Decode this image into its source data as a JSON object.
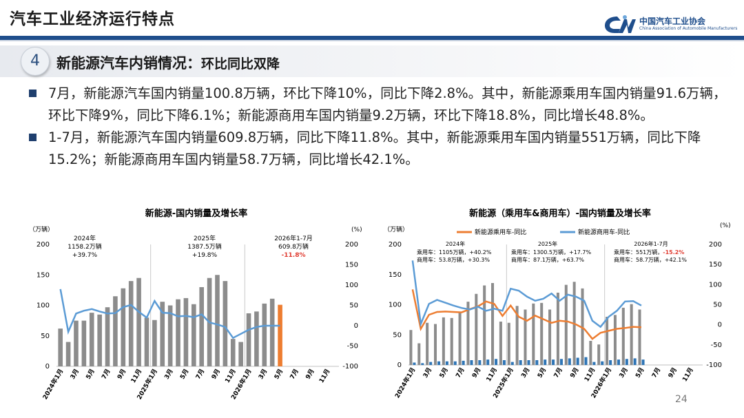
{
  "header": {
    "title": "汽车工业经济运行特点",
    "logo_cn": "中国汽车工业协会",
    "logo_en": "China Association of Automobile Manufacturers"
  },
  "section": {
    "number": "4",
    "title": "新能源汽车内销情况：",
    "title_tail": "环比同比双降"
  },
  "bullets": [
    "7月，新能源汽车国内销量100.8万辆，环比下降10%，同比下降2.8%。其中，新能源乘用车国内销量91.6万辆，环比下降9%，同比下降6.1%；新能源商用车国内销量9.2万辆，环比下降18.8%，同比增长48.8%。",
    "1-7月，新能源汽车国内销量609.8万辆，同比下降11.8%。其中，新能源乘用车国内销量551万辆，同比下降15.2%；新能源商用车国内销量58.7万辆，同比增长42.1%。"
  ],
  "page_number": "24",
  "colors": {
    "bar": "#8c8c8c",
    "bar_current": "#ed7d31",
    "growth_line": "#5b9bd5",
    "passenger_line": "#ed7d31",
    "commercial_bar": "#2e75b6",
    "negative_text": "#e03c31",
    "accent": "#1f4e8c"
  },
  "chart_data": [
    {
      "type": "bar",
      "title": "新能源-国内销量及增长率",
      "ylabel": "（万辆）",
      "y2label": "(%)",
      "ylim": [
        0,
        200
      ],
      "y2lim": [
        -100,
        200
      ],
      "yticks": [
        0,
        50,
        100,
        150,
        200
      ],
      "y2ticks": [
        -100,
        -50,
        0,
        50,
        100,
        150,
        200
      ],
      "x_tick_labels": [
        "2024年1月",
        "3月",
        "5月",
        "7月",
        "9月",
        "11月",
        "2025年1月",
        "3月",
        "5月",
        "7月",
        "9月",
        "11月",
        "2026年1月",
        "3月",
        "5月",
        "7月",
        "9月",
        "11月"
      ],
      "series": [
        {
          "name": "",
          "values": [
            62,
            40,
            75,
            75,
            88,
            85,
            97,
            115,
            128,
            140,
            145,
            80,
            76,
            106,
            100,
            110,
            112,
            102,
            130,
            145,
            150,
            140,
            45,
            40,
            87,
            90,
            103,
            111,
            101,
            null,
            null,
            null,
            null,
            null,
            null,
            null
          ]
        },
        {
          "name": "",
          "values": [
            90,
            -15,
            30,
            37,
            41,
            35,
            30,
            31,
            46,
            51,
            34,
            20,
            61,
            32,
            31,
            23,
            24,
            21,
            28,
            8,
            3,
            -3,
            -30,
            -20,
            -10,
            -3,
            0,
            0,
            0,
            null,
            null,
            null,
            null,
            null,
            null,
            null
          ]
        }
      ],
      "annotations": [
        {
          "period": "2024年",
          "total": "1158.2万辆",
          "growth": "+39.7%"
        },
        {
          "period": "2025年",
          "total": "1387.5万辆",
          "growth": "+19.8%"
        },
        {
          "period": "2026年1-7月",
          "total": "609.8万辆",
          "growth": "-11.8%"
        }
      ]
    },
    {
      "type": "bar",
      "title": "新能源（乘用车&商用车）-国内销量及增长率",
      "ylabel": "（万辆）",
      "y2label": "(%)",
      "ylim": [
        0,
        200
      ],
      "y2lim": [
        -100,
        200
      ],
      "yticks": [
        0,
        50,
        100,
        150,
        200
      ],
      "y2ticks": [
        -100,
        -50,
        0,
        50,
        100,
        150,
        200
      ],
      "legend": [
        "新能源乘用车-同比",
        "新能源商用车-同比"
      ],
      "x_tick_labels": [
        "2024年1月",
        "3月",
        "5月",
        "7月",
        "9月",
        "11月",
        "2025年1月",
        "3月",
        "5月",
        "7月",
        "9月",
        "11月",
        "2026年1月",
        "3月",
        "5月",
        "7月",
        "9月",
        "11月"
      ],
      "series": [
        {
          "name": "乘用车",
          "values": [
            58,
            36,
            70,
            68,
            79,
            78,
            88,
            105,
            118,
            132,
            136,
            72,
            70,
            98,
            92,
            102,
            103,
            92,
            120,
            133,
            138,
            127,
            40,
            34,
            80,
            83,
            95,
            101,
            92,
            null,
            null,
            null,
            null,
            null,
            null,
            null
          ]
        },
        {
          "name": "商用车",
          "values": [
            4,
            3,
            5,
            6,
            6,
            6,
            7,
            8,
            8,
            9,
            10,
            8,
            5,
            8,
            8,
            8,
            9,
            9,
            10,
            11,
            12,
            13,
            5,
            6,
            8,
            9,
            10,
            11,
            9,
            null,
            null,
            null,
            null,
            null,
            null,
            null
          ]
        },
        {
          "name": "新能源乘用车-同比",
          "values": [
            88,
            -10,
            25,
            32,
            33,
            32,
            31,
            39,
            46,
            58,
            52,
            22,
            48,
            20,
            10,
            23,
            14,
            5,
            10,
            8,
            1,
            -10,
            -35,
            -20,
            -15,
            -10,
            -8,
            -5,
            -6,
            null,
            null,
            null,
            null,
            null,
            null,
            null
          ]
        },
        {
          "name": "新能源商用车-同比",
          "values": [
            160,
            2,
            52,
            62,
            55,
            48,
            42,
            38,
            45,
            35,
            40,
            35,
            90,
            85,
            70,
            60,
            65,
            78,
            60,
            75,
            70,
            60,
            10,
            -5,
            20,
            35,
            58,
            59,
            48,
            null,
            null,
            null,
            null,
            null,
            null,
            null
          ]
        }
      ],
      "annotations": [
        {
          "period": "2024年",
          "line1": "乘用车：1105万辆，+40.2%",
          "line2": "商用车：53.8万辆，+30.3%"
        },
        {
          "period": "2025年",
          "line1": "乘用车：1300.5万辆，+17.7%",
          "line2": "商用车：87.1万辆，+63.7%"
        },
        {
          "period": "2026年1-7月",
          "line1_pre": "乘用车：551万辆，",
          "line1_neg": "-15.2%",
          "line2": "商用车：58.7万辆，+42.1%"
        }
      ]
    }
  ]
}
